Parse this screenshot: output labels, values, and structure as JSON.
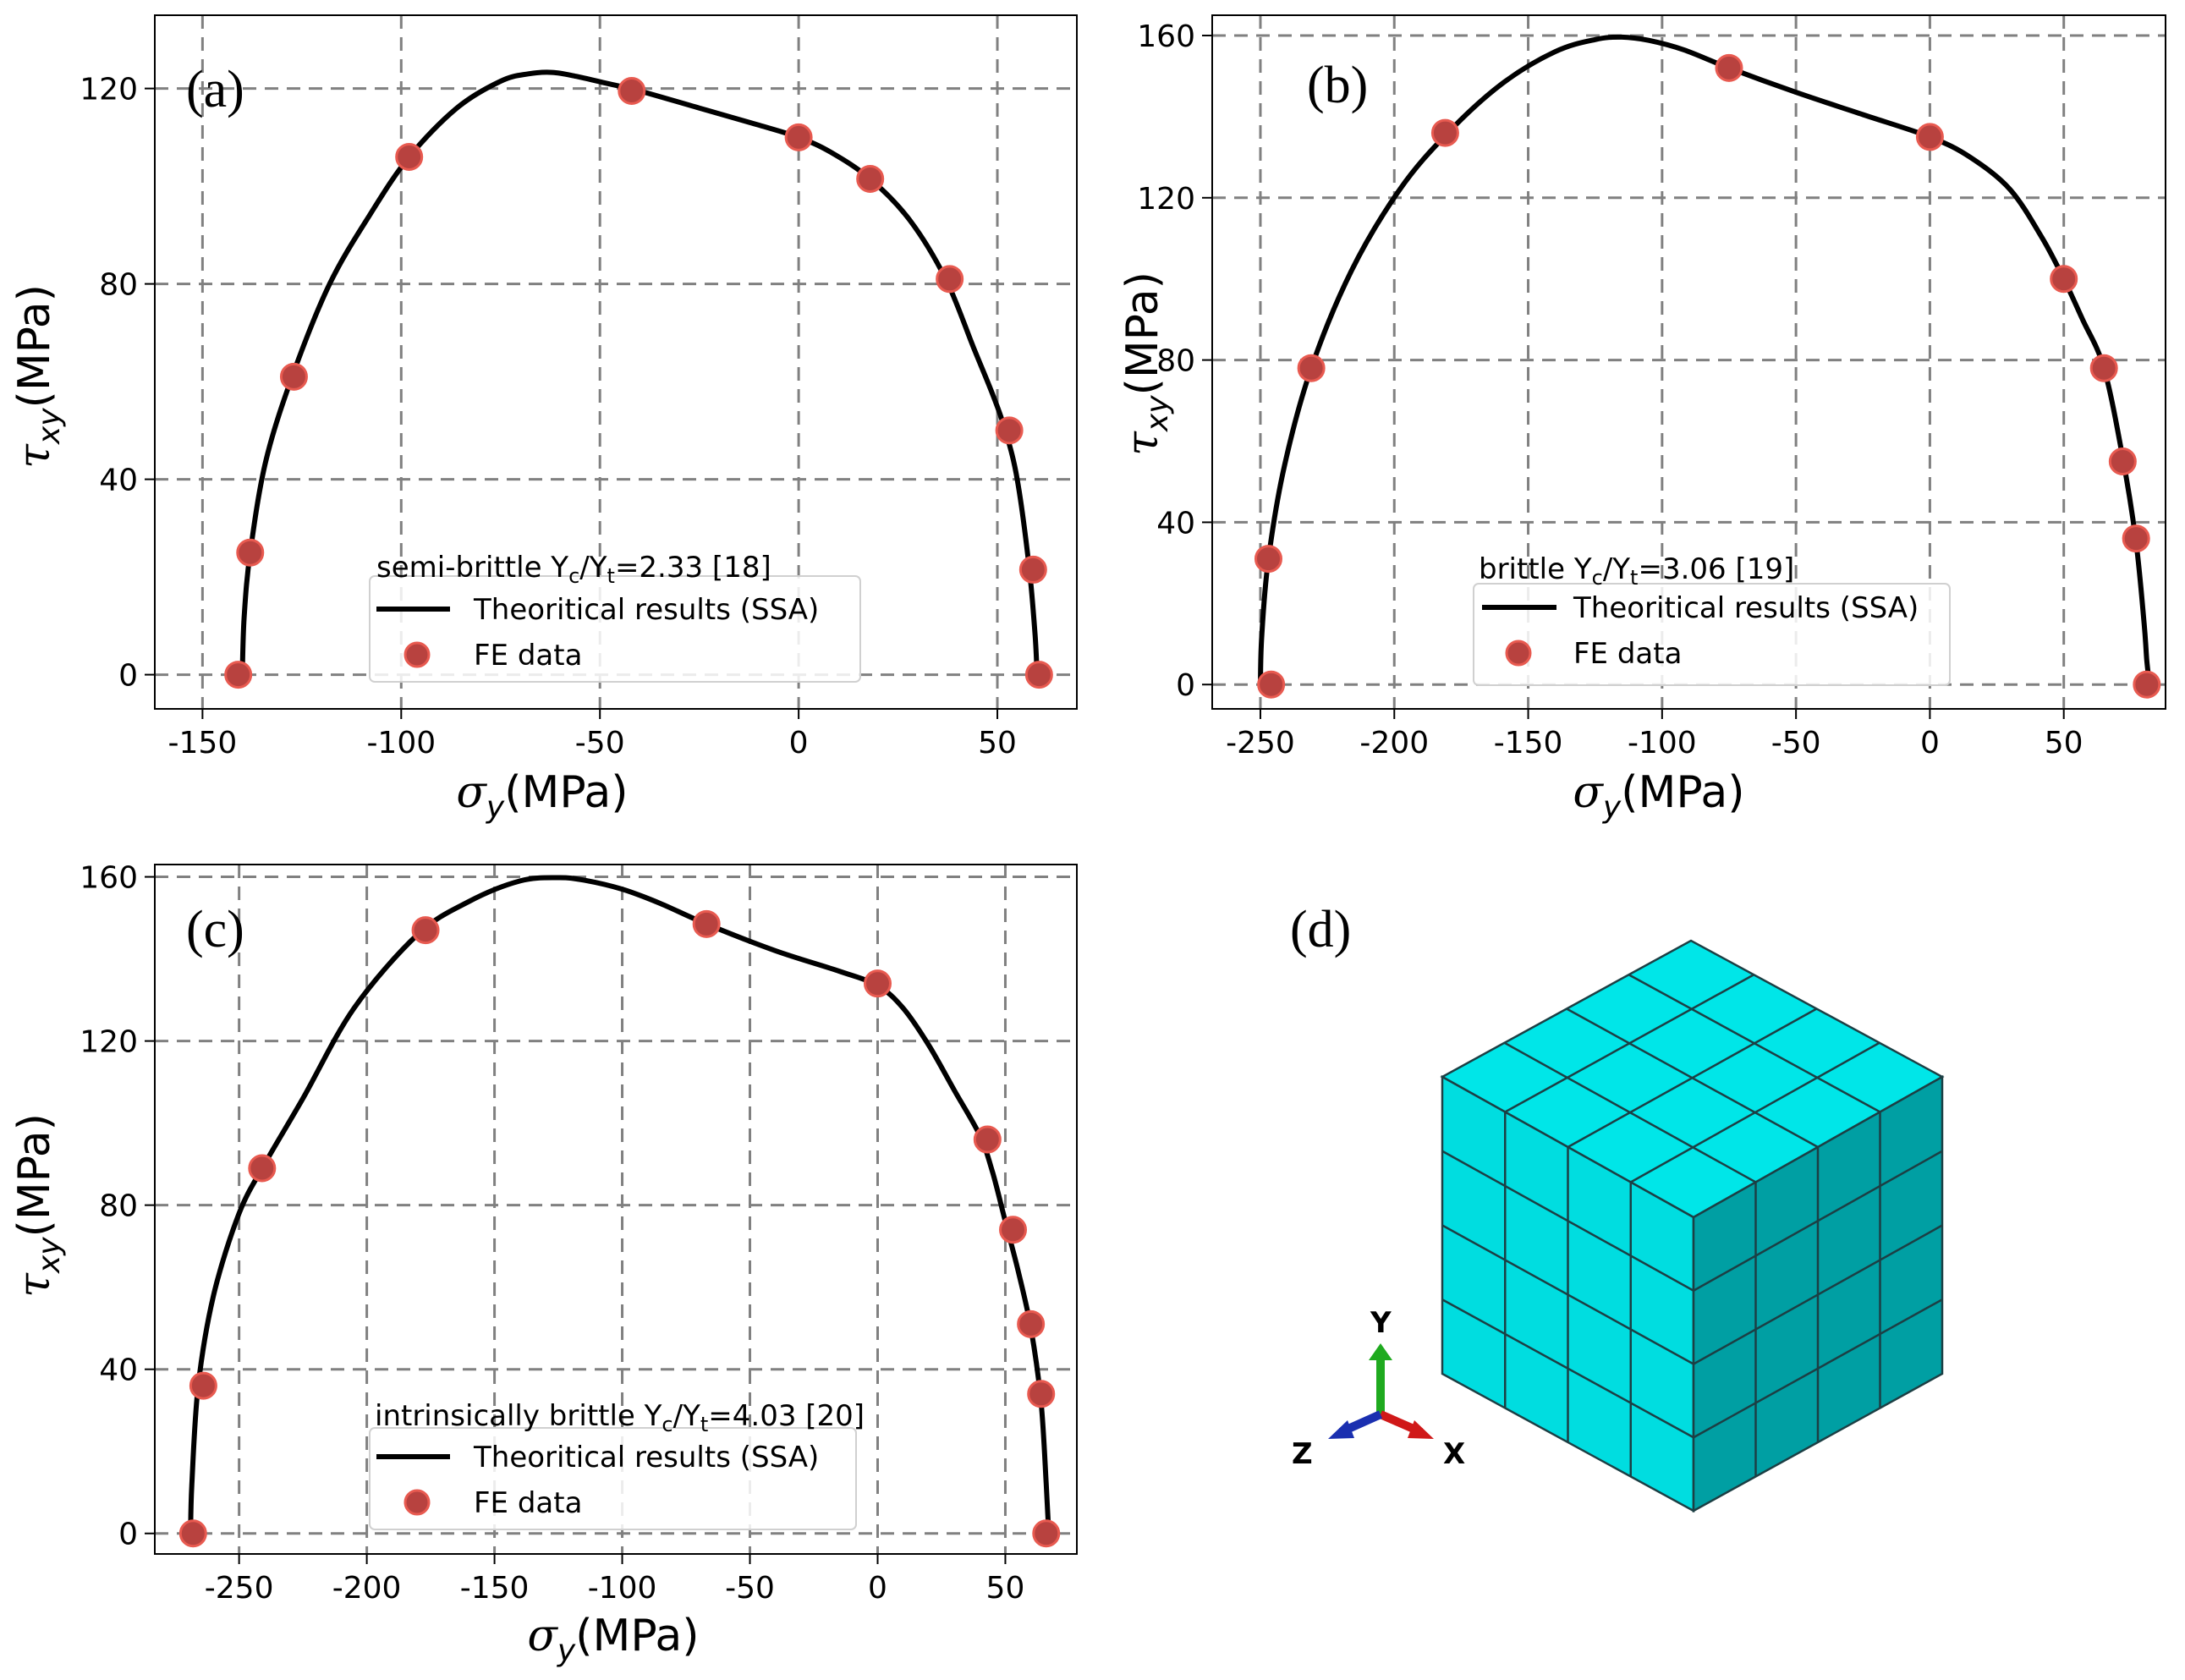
{
  "chart_data": [
    {
      "type": "line",
      "id": "a",
      "panel_label": "(a)",
      "xlabel_sym": "σ",
      "xlabel_sub": "y",
      "xlabel_unit": "(MPa)",
      "ylabel_sym": "τ",
      "ylabel_sub": "xy",
      "ylabel_unit": "(MPa)",
      "xlim": [
        -162,
        70
      ],
      "ylim": [
        -7,
        135
      ],
      "xticks": [
        -150,
        -100,
        -50,
        0,
        50
      ],
      "yticks": [
        0,
        40,
        80,
        120
      ],
      "grid": true,
      "legend": {
        "title_pre": "semi-brittle Y",
        "title_sub1": "c",
        "title_mid": "/Y",
        "title_sub2": "t",
        "title_post": "=2.33 [18]",
        "line_label": "Theoritical results (SSA)",
        "marker_label": "FE data",
        "placement": "lower-center"
      },
      "curve": {
        "x": [
          -140,
          -139.5,
          -138,
          -134,
          -127,
          -118,
          -108,
          -98,
          -86,
          -75,
          -68,
          -62,
          -56,
          -48,
          -40,
          -25,
          -10,
          0,
          8,
          18,
          28,
          37,
          44,
          49,
          52,
          55,
          58,
          59.5,
          60
        ],
        "y": [
          0,
          12,
          25,
          44,
          62,
          80,
          94,
          106,
          116,
          121.5,
          123,
          123.3,
          122.5,
          121,
          119.5,
          116,
          112.5,
          110,
          107,
          101.5,
          93,
          81,
          67,
          57,
          50,
          40,
          22,
          8,
          0
        ]
      },
      "points": {
        "x": [
          -141,
          -138,
          -127,
          -98,
          -42,
          0,
          18,
          38,
          53,
          59,
          60.5
        ],
        "y": [
          0,
          25,
          61,
          106,
          119.5,
          110,
          101.5,
          81,
          50,
          21.5,
          0
        ]
      }
    },
    {
      "type": "line",
      "id": "b",
      "panel_label": "(b)",
      "xlabel_sym": "σ",
      "xlabel_sub": "y",
      "xlabel_unit": "(MPa)",
      "ylabel_sym": "τ",
      "ylabel_sub": "xy",
      "ylabel_unit": "(MPa)",
      "xlim": [
        -268,
        88
      ],
      "ylim": [
        -6,
        165
      ],
      "xticks": [
        -250,
        -200,
        -150,
        -100,
        -50,
        0,
        50
      ],
      "yticks": [
        0,
        40,
        80,
        120,
        160
      ],
      "grid": true,
      "legend": {
        "title_pre": "brittle Y",
        "title_sub1": "c",
        "title_mid": "/Y",
        "title_sub2": "t",
        "title_post": "=3.06 [19]",
        "line_label": "Theoritical results (SSA)",
        "marker_label": "FE data",
        "placement": "lower-center"
      },
      "curve": {
        "x": [
          -250,
          -249.5,
          -247,
          -241,
          -231,
          -216,
          -198,
          -180,
          -160,
          -140,
          -125,
          -115,
          -105,
          -92,
          -75,
          -50,
          -25,
          0,
          15,
          30,
          42,
          50,
          57,
          65,
          72,
          77,
          80,
          81,
          82
        ],
        "y": [
          0,
          12,
          31,
          54,
          78,
          102,
          122,
          136,
          148,
          156,
          159,
          159.6,
          158.8,
          156.5,
          152,
          146,
          140.5,
          135,
          130,
          122,
          110,
          100,
          90,
          78,
          56,
          35,
          15,
          6,
          0
        ]
      },
      "points": {
        "x": [
          -246,
          -247,
          -231,
          -181,
          -75,
          0,
          50,
          65,
          72,
          77,
          81
        ],
        "y": [
          0,
          31,
          78,
          136,
          152,
          135,
          100,
          78,
          55,
          36,
          0
        ]
      }
    },
    {
      "type": "line",
      "id": "c",
      "panel_label": "(c)",
      "xlabel_sym": "σ",
      "xlabel_sub": "y",
      "xlabel_unit": "(MPa)",
      "ylabel_sym": "τ",
      "ylabel_sub": "xy",
      "ylabel_unit": "(MPa)",
      "xlim": [
        -283,
        78
      ],
      "ylim": [
        -5,
        163
      ],
      "xticks": [
        -250,
        -200,
        -150,
        -100,
        -50,
        0,
        50
      ],
      "yticks": [
        0,
        40,
        80,
        120,
        160
      ],
      "grid": true,
      "legend": {
        "title_pre": "intrinsically brittle Y",
        "title_sub1": "c",
        "title_mid": "/Y",
        "title_sub2": "t",
        "title_post": "=4.03 [20]",
        "line_label": "Theoritical results (SSA)",
        "marker_label": "FE data",
        "placement": "lower-center"
      },
      "curve": {
        "x": [
          -269,
          -268.5,
          -266,
          -260,
          -250,
          -240,
          -225,
          -205,
          -180,
          -160,
          -140,
          -125,
          -115,
          -100,
          -85,
          -67,
          -40,
          -15,
          0,
          10,
          20,
          30,
          40,
          45,
          50,
          55,
          60,
          64,
          66,
          67
        ],
        "y": [
          0,
          12,
          36,
          58,
          78,
          90,
          106,
          128,
          146,
          154,
          159,
          159.8,
          159.2,
          157,
          153.5,
          148.5,
          142,
          137,
          133.5,
          128,
          119,
          108,
          97,
          88,
          76,
          64,
          50,
          32,
          12,
          0
        ]
      },
      "points": {
        "x": [
          -268,
          -264,
          -241,
          -177,
          -67,
          0,
          43,
          53,
          60,
          64,
          66
        ],
        "y": [
          0,
          36,
          89,
          147,
          148.5,
          134,
          96,
          74,
          51,
          34,
          0
        ]
      }
    }
  ],
  "panel_d": {
    "label": "(d)",
    "axis_y": "Y",
    "axis_z": "Z",
    "axis_x": "X",
    "colors": {
      "top": "#00e6e8",
      "left": "#00dde0",
      "right": "#009fa3",
      "edge": "#1c3f44",
      "axis_y": "#1faa1f",
      "axis_z": "#1a2fb0",
      "axis_x": "#d01818"
    }
  },
  "colors": {
    "curve": "#000000",
    "marker_fill": "#b8423f",
    "marker_edge": "#e85a50",
    "grid": "#808080"
  }
}
